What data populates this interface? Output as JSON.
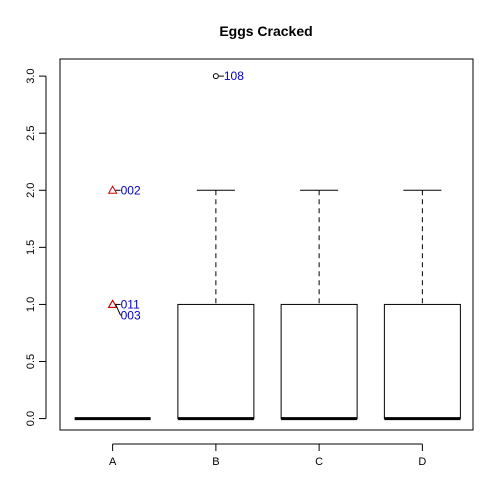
{
  "chart_data": {
    "type": "boxplot",
    "title": "Eggs Cracked",
    "xlabel": "",
    "ylabel": "",
    "categories": [
      "A",
      "B",
      "C",
      "D"
    ],
    "ylim": [
      -0.1,
      3.15
    ],
    "yticks": [
      0.0,
      0.5,
      1.0,
      1.5,
      2.0,
      2.5,
      3.0
    ],
    "ytick_labels": [
      "0.0",
      "0.5",
      "1.0",
      "1.5",
      "2.0",
      "2.5",
      "3.0"
    ],
    "grid": false,
    "boxes": [
      {
        "category": "A",
        "min": 0,
        "q1": 0,
        "median": 0,
        "q3": 0,
        "max": 0
      },
      {
        "category": "B",
        "min": 0,
        "q1": 0,
        "median": 0,
        "q3": 1,
        "max": 2
      },
      {
        "category": "C",
        "min": 0,
        "q1": 0,
        "median": 0,
        "q3": 1,
        "max": 2
      },
      {
        "category": "D",
        "min": 0,
        "q1": 0,
        "median": 0,
        "q3": 1,
        "max": 2
      }
    ],
    "points": [
      {
        "category": "A",
        "value": 2,
        "label": "002",
        "shape": "triangle"
      },
      {
        "category": "A",
        "value": 1,
        "label": "011",
        "shape": "triangle"
      },
      {
        "category": "A",
        "value": 1,
        "label": "003",
        "shape": "triangle"
      },
      {
        "category": "B",
        "value": 3,
        "label": "108",
        "shape": "circle"
      }
    ],
    "colors": {
      "axis": "#000000",
      "triangle": "#cc0000",
      "circle": "#000000",
      "annotation": "#0000cc"
    }
  }
}
